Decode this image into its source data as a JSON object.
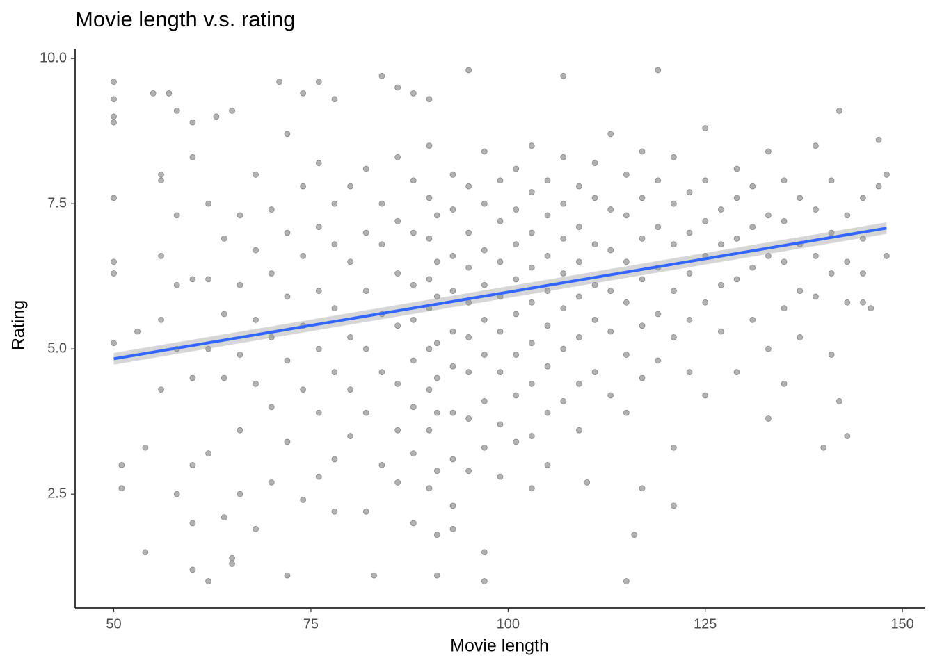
{
  "chart_data": {
    "type": "scatter",
    "title": "Movie length v.s. rating",
    "x_label": "Movie length",
    "y_label": "Rating",
    "color": "#000000",
    "point_alpha": 0.3,
    "xlim": [
      45.1,
      152.9
    ],
    "ylim": [
      0.54,
      10.17
    ],
    "xticks": [
      50,
      75,
      100,
      125,
      150
    ],
    "yticks": [
      2.5,
      {
        "value": 5,
        "label": "5.0"
      },
      7.5,
      {
        "value": 10,
        "label": "10.0"
      }
    ],
    "grid": false,
    "x": [
      50,
      50,
      50,
      50,
      50,
      50,
      50,
      50,
      51,
      51,
      54,
      54,
      55,
      57,
      58,
      53,
      56,
      56,
      60,
      60,
      60,
      62,
      63,
      65,
      65,
      65,
      71,
      72,
      74,
      76,
      78,
      83,
      84,
      86,
      88,
      90,
      91,
      93,
      95,
      97,
      107,
      119,
      115,
      116,
      121,
      142,
      142,
      143,
      140,
      147,
      148,
      148,
      146,
      145,
      147,
      121,
      117,
      110,
      56,
      56,
      56,
      58,
      58,
      58,
      58,
      60,
      60,
      60,
      60,
      62,
      62,
      62,
      62,
      64,
      64,
      64,
      64,
      66,
      66,
      66,
      66,
      66,
      68,
      68,
      68,
      68,
      68,
      70,
      70,
      70,
      70,
      70,
      72,
      72,
      72,
      72,
      72,
      74,
      74,
      74,
      74,
      74,
      76,
      76,
      76,
      76,
      76,
      76,
      78,
      78,
      78,
      78,
      78,
      78,
      80,
      80,
      80,
      80,
      80,
      82,
      82,
      82,
      82,
      82,
      82,
      84,
      84,
      84,
      84,
      84,
      86,
      86,
      86,
      86,
      86,
      86,
      86,
      88,
      88,
      88,
      88,
      88,
      88,
      88,
      88,
      90,
      90,
      90,
      90,
      90,
      90,
      90,
      90,
      90,
      91,
      91,
      91,
      91,
      91,
      91,
      91,
      91,
      93,
      93,
      93,
      93,
      93,
      93,
      93,
      93,
      93,
      95,
      95,
      95,
      95,
      95,
      95,
      95,
      95,
      97,
      97,
      97,
      97,
      97,
      97,
      97,
      97,
      97,
      99,
      99,
      99,
      99,
      99,
      99,
      99,
      99,
      101,
      101,
      101,
      101,
      101,
      101,
      101,
      101,
      103,
      103,
      103,
      103,
      103,
      103,
      103,
      103,
      103,
      105,
      105,
      105,
      105,
      105,
      105,
      105,
      105,
      107,
      107,
      107,
      107,
      107,
      107,
      107,
      109,
      109,
      109,
      109,
      109,
      109,
      109,
      111,
      111,
      111,
      111,
      111,
      111,
      113,
      113,
      113,
      113,
      113,
      113,
      115,
      115,
      115,
      115,
      115,
      115,
      117,
      117,
      117,
      117,
      117,
      117,
      119,
      119,
      119,
      119,
      119,
      121,
      121,
      121,
      121,
      121,
      123,
      123,
      123,
      123,
      123,
      125,
      125,
      125,
      125,
      125,
      125,
      127,
      127,
      127,
      127,
      129,
      129,
      129,
      129,
      129,
      131,
      131,
      131,
      131,
      133,
      133,
      133,
      133,
      133,
      135,
      135,
      135,
      135,
      135,
      137,
      137,
      137,
      137,
      139,
      139,
      139,
      139,
      141,
      141,
      141,
      141,
      143,
      143,
      143,
      145,
      145,
      145
    ],
    "values": [
      9.6,
      9.3,
      9.0,
      8.9,
      7.6,
      6.5,
      6.3,
      5.1,
      3.0,
      2.6,
      1.5,
      3.3,
      9.4,
      9.4,
      9.1,
      5.3,
      8.0,
      5.5,
      8.9,
      1.2,
      2.0,
      1.0,
      9.0,
      9.1,
      1.3,
      1.4,
      9.6,
      1.1,
      9.4,
      9.6,
      9.3,
      1.1,
      9.7,
      9.5,
      9.4,
      9.3,
      1.1,
      1.9,
      9.8,
      1.0,
      9.7,
      9.8,
      1.0,
      1.8,
      2.3,
      9.1,
      4.1,
      3.5,
      3.3,
      8.6,
      8.0,
      6.6,
      5.7,
      5.8,
      7.8,
      3.3,
      2.6,
      2.7,
      7.9,
      6.6,
      4.3,
      7.3,
      6.1,
      5.0,
      2.5,
      8.3,
      6.2,
      4.5,
      3.0,
      7.5,
      6.2,
      5.0,
      3.2,
      6.9,
      5.6,
      4.5,
      2.1,
      7.3,
      6.1,
      4.9,
      3.6,
      2.5,
      8.0,
      6.7,
      5.5,
      4.4,
      1.9,
      7.4,
      6.3,
      5.2,
      4.0,
      2.7,
      8.7,
      7.0,
      5.9,
      4.8,
      3.4,
      7.8,
      6.6,
      5.4,
      4.3,
      2.4,
      8.2,
      7.1,
      6.0,
      5.0,
      3.9,
      2.8,
      7.5,
      6.8,
      5.7,
      4.6,
      3.1,
      2.2,
      7.8,
      6.5,
      5.2,
      4.3,
      3.5,
      8.1,
      7.0,
      6.0,
      5.0,
      3.9,
      2.2,
      7.5,
      6.8,
      5.6,
      4.6,
      3.0,
      8.3,
      7.2,
      6.3,
      5.4,
      4.4,
      3.6,
      2.7,
      7.9,
      7.0,
      6.1,
      5.5,
      4.8,
      4.0,
      3.2,
      2.0,
      8.5,
      7.6,
      6.9,
      6.2,
      5.7,
      5.0,
      4.3,
      3.6,
      2.6,
      7.3,
      6.5,
      5.9,
      5.1,
      4.5,
      3.9,
      2.9,
      1.8,
      8.0,
      7.4,
      6.6,
      6.0,
      5.3,
      4.7,
      3.9,
      3.1,
      2.3,
      7.8,
      7.0,
      6.4,
      5.8,
      5.2,
      4.6,
      3.8,
      2.9,
      8.4,
      7.5,
      6.7,
      6.1,
      5.5,
      4.9,
      4.1,
      3.3,
      1.5,
      7.9,
      7.2,
      6.5,
      5.9,
      5.3,
      4.6,
      3.7,
      2.8,
      8.1,
      7.4,
      6.8,
      6.2,
      5.6,
      4.9,
      4.2,
      3.4,
      8.5,
      7.7,
      7.0,
      6.4,
      5.8,
      5.1,
      4.4,
      3.5,
      2.6,
      7.9,
      7.3,
      6.6,
      6.0,
      5.4,
      4.7,
      3.9,
      3.0,
      8.3,
      7.5,
      6.9,
      6.3,
      5.7,
      5.0,
      4.1,
      7.8,
      7.1,
      6.5,
      5.9,
      5.2,
      4.4,
      3.6,
      8.2,
      7.6,
      6.8,
      6.1,
      5.5,
      4.6,
      8.7,
      7.4,
      6.7,
      6.0,
      5.3,
      4.2,
      8.0,
      7.3,
      6.5,
      5.8,
      4.9,
      3.9,
      8.4,
      7.6,
      6.9,
      6.2,
      5.4,
      4.5,
      7.9,
      7.1,
      6.4,
      5.6,
      4.8,
      8.3,
      7.5,
      6.8,
      6.0,
      5.2,
      7.7,
      7.0,
      6.3,
      5.5,
      4.6,
      8.8,
      7.9,
      7.2,
      6.6,
      5.8,
      4.2,
      7.4,
      6.8,
      6.1,
      5.3,
      8.1,
      7.6,
      6.9,
      6.2,
      4.6,
      7.8,
      7.1,
      6.4,
      5.5,
      8.4,
      7.3,
      6.6,
      5.0,
      3.8,
      7.9,
      7.2,
      6.5,
      5.7,
      4.4,
      7.6,
      6.8,
      6.0,
      5.2,
      8.5,
      7.4,
      6.6,
      5.9,
      7.9,
      7.0,
      6.3,
      4.9,
      7.3,
      6.5,
      5.8,
      7.6,
      6.9,
      6.3
    ],
    "trend": {
      "color": "#3366ff",
      "band_color": "#999999",
      "x": [
        50,
        148
      ],
      "values": [
        4.83,
        7.08
      ],
      "lower": [
        4.73,
        6.98
      ],
      "upper": [
        4.93,
        7.18
      ]
    }
  }
}
